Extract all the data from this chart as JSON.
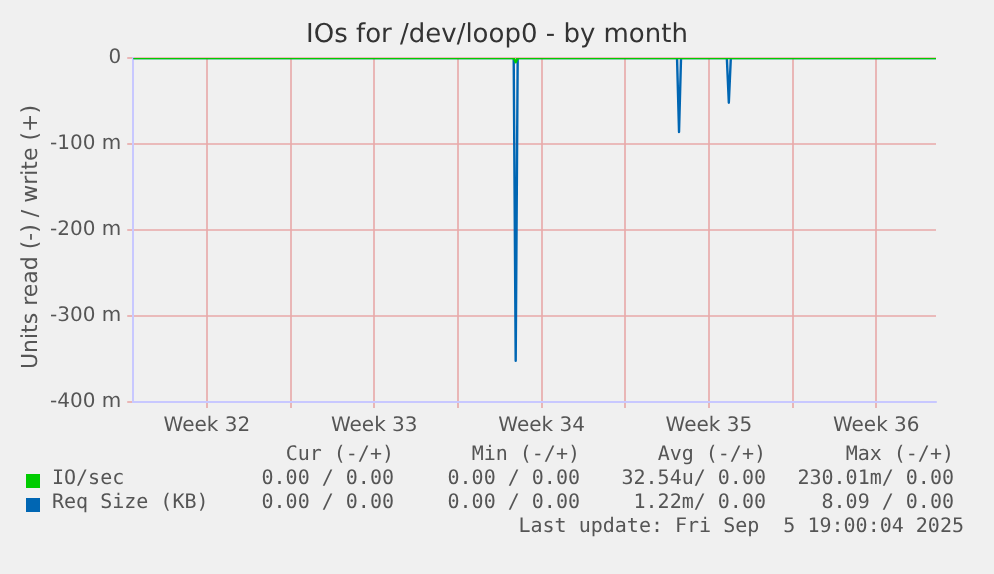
{
  "chart_data": {
    "type": "line",
    "title": "IOs for /dev/loop0 - by month",
    "ylabel": "Units read (-) / write (+)",
    "xlim": [
      "2025-08-04T10:00",
      "2025-09-07T00:00"
    ],
    "xticks": [
      {
        "value": "2025-08-07T12:00",
        "label": "Week 32"
      },
      {
        "value": "2025-08-11T00:00",
        "label": null
      },
      {
        "value": "2025-08-14T12:00",
        "label": "Week 33"
      },
      {
        "value": "2025-08-18T00:00",
        "label": null
      },
      {
        "value": "2025-08-21T12:00",
        "label": "Week 34"
      },
      {
        "value": "2025-08-25T00:00",
        "label": null
      },
      {
        "value": "2025-08-28T12:00",
        "label": "Week 35"
      },
      {
        "value": "2025-09-01T00:00",
        "label": null
      },
      {
        "value": "2025-09-04T12:00",
        "label": "Week 36"
      }
    ],
    "ylim": [
      -400,
      0
    ],
    "yticks": [
      {
        "value": -400,
        "label": "-400 m"
      },
      {
        "value": -300,
        "label": "-300 m"
      },
      {
        "value": -200,
        "label": "-200 m"
      },
      {
        "value": -100,
        "label": "-100 m"
      },
      0
    ],
    "grid": true,
    "legend": "bottom",
    "marker": "none",
    "line_style": "solid",
    "series": [
      {
        "name": "IO/sec",
        "color": "#00cc00",
        "x": [
          "2025-08-04T10:00",
          "2025-08-20T08:00",
          "2025-08-20T10:00",
          "2025-08-20T12:00",
          "2025-09-07T00:00"
        ],
        "values": [
          0,
          0,
          -5,
          0,
          0
        ]
      },
      {
        "name": "Req Size (KB)",
        "color": "#0066b3",
        "x": [
          "2025-08-04T10:00",
          "2025-08-20T08:00",
          "2025-08-20T10:00",
          "2025-08-20T12:00",
          "2025-08-27T04:00",
          "2025-08-27T06:00",
          "2025-08-27T08:00",
          "2025-08-29T06:00",
          "2025-08-29T08:00",
          "2025-08-29T10:00",
          "2025-09-07T00:00"
        ],
        "values": [
          0,
          0,
          -352,
          0,
          0,
          -86,
          0,
          0,
          -52,
          0,
          0
        ]
      }
    ],
    "annotations": [
      "Cur (-/+)",
      "Min (-/+)",
      "Avg (-/+)",
      "Max (-/+)",
      "0.00 / 0.00",
      "0.00 / 0.00",
      "32.54u/ 0.00",
      "230.01m/ 0.00",
      "0.00 / 0.00",
      "0.00 / 0.00",
      "1.22m/ 0.00",
      "8.09 / 0.00",
      "Last update: Fri Sep  5 19:00:04 2025"
    ]
  }
}
